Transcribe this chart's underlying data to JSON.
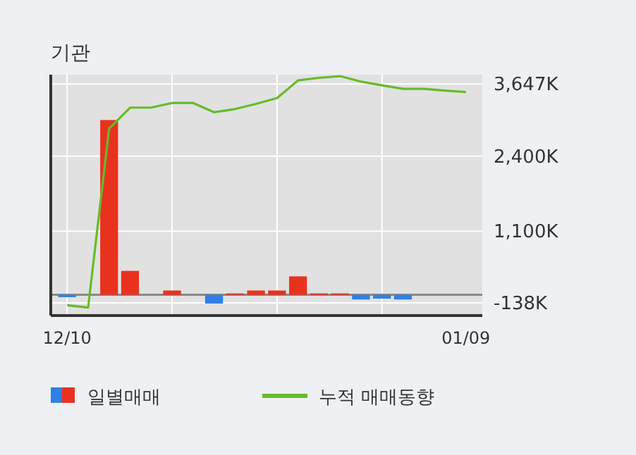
{
  "chart_data": {
    "type": "bar",
    "title": "기관",
    "categories": [
      "12/10",
      null,
      null,
      null,
      null,
      null,
      null,
      null,
      null,
      null,
      null,
      null,
      null,
      null,
      null,
      null,
      null,
      null,
      null,
      "01/09"
    ],
    "series": [
      {
        "name": "일별매매",
        "colors": [
          "#2f7fe6",
          "#e8321e",
          "#e8321e",
          "#e8321e",
          "#e8321e",
          "#e8321e",
          "#e8321e",
          "#2f7fe6",
          "#e8321e",
          "#e8321e",
          "#e8321e",
          "#e8321e",
          "#e8321e",
          "#e8321e",
          "#2f7fe6",
          "#2f7fe6",
          "#2f7fe6",
          "#e8321e",
          "#e8321e",
          "#e8321e"
        ],
        "values": [
          -40,
          0,
          3025,
          415,
          0,
          75,
          0,
          -150,
          25,
          75,
          75,
          320,
          25,
          25,
          -80,
          -65,
          -80,
          0,
          0,
          0
        ]
      },
      {
        "name": "누적 매매동향",
        "type": "line",
        "color": "#66bb2a",
        "values": [
          -180,
          -220,
          2875,
          3240,
          3240,
          3320,
          3320,
          3160,
          3215,
          3305,
          3405,
          3710,
          3755,
          3785,
          3690,
          3625,
          3565,
          3565,
          3535,
          3510
        ]
      }
    ],
    "ylim": [
      -358,
      3810
    ],
    "yticks": [
      {
        "value": -138,
        "label": "-138K"
      },
      {
        "value": 1100,
        "label": "1,100K"
      },
      {
        "value": 2400,
        "label": "2,400K"
      },
      {
        "value": 3647,
        "label": "3,647K"
      }
    ],
    "grid": true,
    "legend": "bottom"
  }
}
